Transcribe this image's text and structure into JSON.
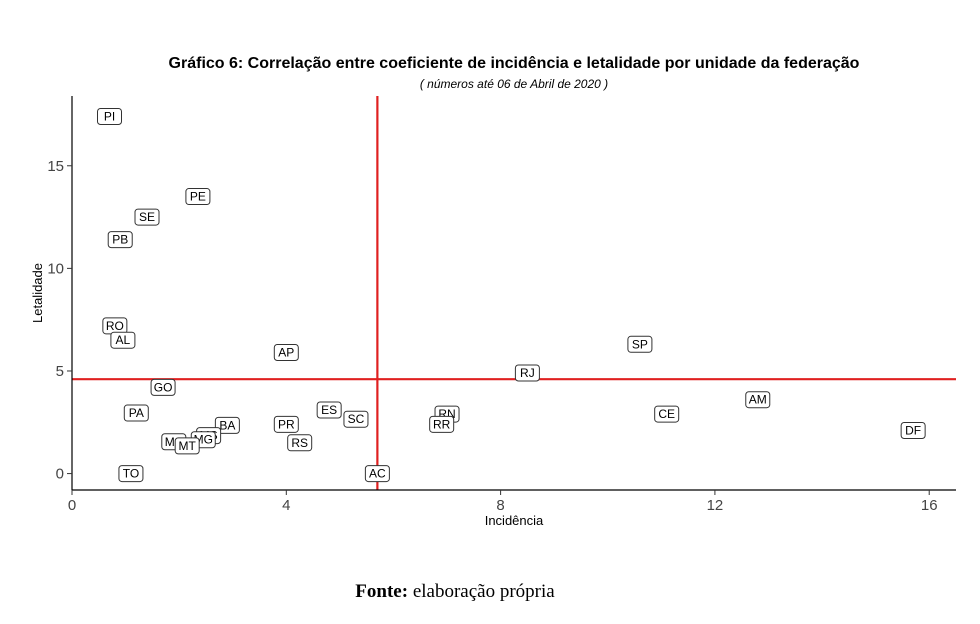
{
  "chart_data": {
    "type": "scatter",
    "title": "Gráfico 6:  Correlação entre coeficiente de incidência e letalidade por unidade da federação",
    "subtitle": "( números até 06 de Abril de 2020 )",
    "xlabel": "Incidência",
    "ylabel": "Letalidade",
    "xlim": [
      0,
      16.5
    ],
    "ylim": [
      -0.8,
      18.4
    ],
    "xticks": [
      0,
      4,
      8,
      12,
      16
    ],
    "yticks": [
      0,
      5,
      10,
      15
    ],
    "grid": false,
    "reference_lines": {
      "x": 5.7,
      "y": 4.6,
      "color": "#e02020"
    },
    "points": [
      {
        "label": "PI",
        "x": 0.7,
        "y": 17.4
      },
      {
        "label": "PE",
        "x": 2.35,
        "y": 13.5
      },
      {
        "label": "SE",
        "x": 1.4,
        "y": 12.5
      },
      {
        "label": "PB",
        "x": 0.9,
        "y": 11.4
      },
      {
        "label": "RO",
        "x": 0.8,
        "y": 7.2
      },
      {
        "label": "AL",
        "x": 0.95,
        "y": 6.5
      },
      {
        "label": "AP",
        "x": 4.0,
        "y": 5.9
      },
      {
        "label": "SP",
        "x": 10.6,
        "y": 6.3
      },
      {
        "label": "RJ",
        "x": 8.5,
        "y": 4.9
      },
      {
        "label": "GO",
        "x": 1.7,
        "y": 4.2
      },
      {
        "label": "AM",
        "x": 12.8,
        "y": 3.6
      },
      {
        "label": "ES",
        "x": 4.8,
        "y": 3.1
      },
      {
        "label": "PA",
        "x": 1.2,
        "y": 2.95
      },
      {
        "label": "RN",
        "x": 7.0,
        "y": 2.9
      },
      {
        "label": "CE",
        "x": 11.1,
        "y": 2.9
      },
      {
        "label": "SC",
        "x": 5.3,
        "y": 2.65
      },
      {
        "label": "RR",
        "x": 6.9,
        "y": 2.4
      },
      {
        "label": "PR",
        "x": 4.0,
        "y": 2.4
      },
      {
        "label": "BA",
        "x": 2.9,
        "y": 2.35
      },
      {
        "label": "DF",
        "x": 15.7,
        "y": 2.1
      },
      {
        "label": "MS",
        "x": 2.55,
        "y": 1.85
      },
      {
        "label": "MG",
        "x": 2.45,
        "y": 1.65
      },
      {
        "label": "RS",
        "x": 4.25,
        "y": 1.5
      },
      {
        "label": "MA",
        "x": 1.9,
        "y": 1.55
      },
      {
        "label": "MT",
        "x": 2.15,
        "y": 1.35
      },
      {
        "label": "TO",
        "x": 1.1,
        "y": 0.0
      },
      {
        "label": "AC",
        "x": 5.7,
        "y": 0.0
      }
    ]
  },
  "source": {
    "prefix": "Fonte:",
    "text": " elaboração própria"
  }
}
